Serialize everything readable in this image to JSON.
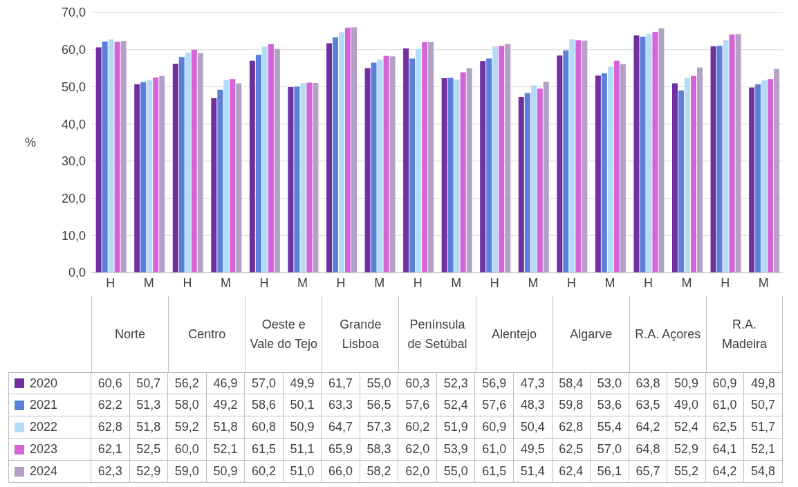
{
  "chart_data": {
    "type": "bar",
    "ylabel": "%",
    "categories": [
      "H",
      "M",
      "H",
      "M",
      "H",
      "M",
      "H",
      "M",
      "H",
      "M",
      "H",
      "M",
      "H",
      "M",
      "H",
      "M",
      "H",
      "M"
    ],
    "annotations": [
      "Norte",
      "Centro",
      "Oeste e Vale do Tejo",
      "Grande Lisboa",
      "Península de Setúbal",
      "Alentejo",
      "Algarve",
      "R.A. Açores",
      "R.A. Madeira"
    ],
    "series": [
      {
        "name": "2020",
        "color": "#7030a0",
        "values": [
          60.6,
          50.7,
          56.2,
          46.9,
          57.0,
          49.9,
          61.7,
          55.0,
          60.3,
          52.3,
          56.9,
          47.3,
          58.4,
          53.0,
          63.8,
          50.9,
          60.9,
          49.8
        ],
        "value_labels": [
          "60,6",
          "50,7",
          "56,2",
          "46,9",
          "57,0",
          "49,9",
          "61,7",
          "55,0",
          "60,3",
          "52,3",
          "56,9",
          "47,3",
          "58,4",
          "53,0",
          "63,8",
          "50,9",
          "60,9",
          "49,8"
        ]
      },
      {
        "name": "2021",
        "color": "#5b7fdb",
        "values": [
          62.2,
          51.3,
          58.0,
          49.2,
          58.6,
          50.1,
          63.3,
          56.5,
          57.6,
          52.4,
          57.6,
          48.3,
          59.8,
          53.6,
          63.5,
          49.0,
          61.0,
          50.7
        ],
        "value_labels": [
          "62,2",
          "51,3",
          "58,0",
          "49,2",
          "58,6",
          "50,1",
          "63,3",
          "56,5",
          "57,6",
          "52,4",
          "57,6",
          "48,3",
          "59,8",
          "53,6",
          "63,5",
          "49,0",
          "61,0",
          "50,7"
        ]
      },
      {
        "name": "2022",
        "color": "#b4dcf7",
        "values": [
          62.8,
          51.8,
          59.2,
          51.8,
          60.8,
          50.9,
          64.7,
          57.3,
          60.2,
          51.9,
          60.9,
          50.4,
          62.8,
          55.4,
          64.2,
          52.4,
          62.5,
          51.7
        ],
        "value_labels": [
          "62,8",
          "51,8",
          "59,2",
          "51,8",
          "60,8",
          "50,9",
          "64,7",
          "57,3",
          "60,2",
          "51,9",
          "60,9",
          "50,4",
          "62,8",
          "55,4",
          "64,2",
          "52,4",
          "62,5",
          "51,7"
        ]
      },
      {
        "name": "2023",
        "color": "#d464d8",
        "values": [
          62.1,
          52.5,
          60.0,
          52.1,
          61.5,
          51.1,
          65.9,
          58.3,
          62.0,
          53.9,
          61.0,
          49.5,
          62.5,
          57.0,
          64.8,
          52.9,
          64.1,
          52.1
        ],
        "value_labels": [
          "62,1",
          "52,5",
          "60,0",
          "52,1",
          "61,5",
          "51,1",
          "65,9",
          "58,3",
          "62,0",
          "53,9",
          "61,0",
          "49,5",
          "62,5",
          "57,0",
          "64,8",
          "52,9",
          "64,1",
          "52,1"
        ]
      },
      {
        "name": "2024",
        "color": "#b4a0c4",
        "values": [
          62.3,
          52.9,
          59.0,
          50.9,
          60.2,
          51.0,
          66.0,
          58.2,
          62.0,
          55.0,
          61.5,
          51.4,
          62.4,
          56.1,
          65.7,
          55.2,
          64.2,
          54.8
        ],
        "value_labels": [
          "62,3",
          "52,9",
          "59,0",
          "50,9",
          "60,2",
          "51,0",
          "66,0",
          "58,2",
          "62,0",
          "55,0",
          "61,5",
          "51,4",
          "62,4",
          "56,1",
          "65,7",
          "55,2",
          "64,2",
          "54,8"
        ]
      }
    ],
    "ylim": [
      0,
      70
    ],
    "yticks": [
      {
        "value": 0,
        "label": "0,0"
      },
      {
        "value": 10,
        "label": "10,0"
      },
      {
        "value": 20,
        "label": "20,0"
      },
      {
        "value": 30,
        "label": "30,0"
      },
      {
        "value": 40,
        "label": "40,0"
      },
      {
        "value": 50,
        "label": "50,0"
      },
      {
        "value": 60,
        "label": "60,0"
      },
      {
        "value": 70,
        "label": "70,0"
      }
    ],
    "grid": "y",
    "legend": "bottom"
  }
}
